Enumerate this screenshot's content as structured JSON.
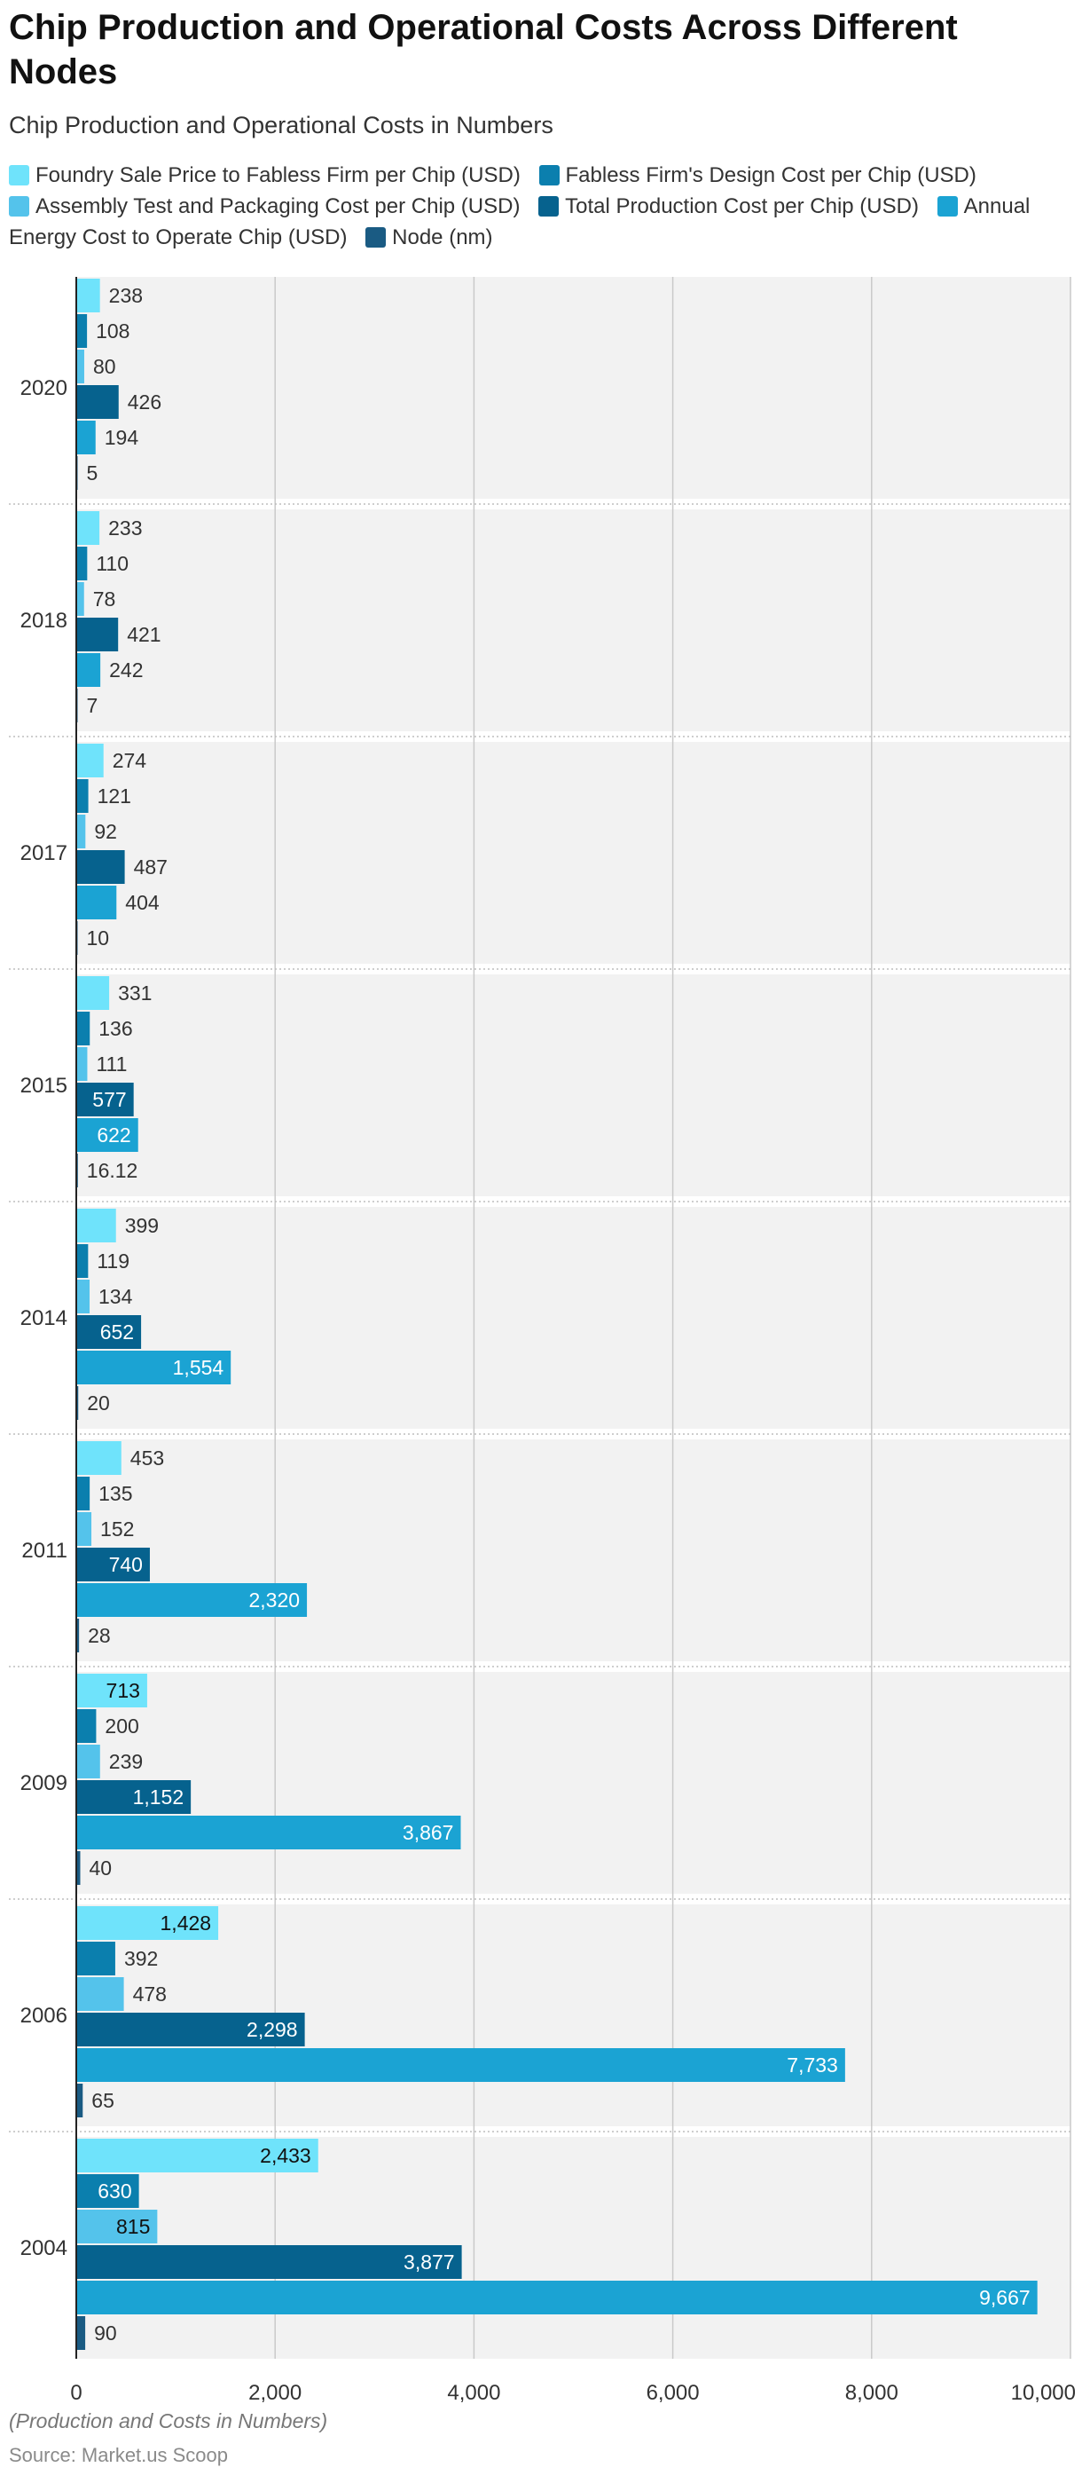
{
  "title": "Chip Production and Operational Costs Across Different Nodes",
  "subtitle": "Chip Production and Operational Costs in Numbers",
  "note": "(Production and Costs in Numbers)",
  "source": "Source: Market.us Scoop",
  "chart_data": {
    "type": "bar",
    "orientation": "horizontal",
    "title": "Chip Production and Operational Costs Across Different Nodes",
    "subtitle": "Chip Production and Operational Costs in Numbers",
    "categories": [
      "2020",
      "2018",
      "2017",
      "2015",
      "2014",
      "2011",
      "2009",
      "2006",
      "2004"
    ],
    "series": [
      {
        "name": "Foundry Sale Price to Fabless Firm per Chip (USD)",
        "color": "#6fe3fb",
        "values": [
          238,
          233,
          274,
          331,
          399,
          453,
          713,
          1428,
          2433
        ]
      },
      {
        "name": "Fabless Firm's Design Cost per Chip (USD)",
        "color": "#0b7fae",
        "values": [
          108,
          110,
          121,
          136,
          119,
          135,
          200,
          392,
          630
        ]
      },
      {
        "name": "Assembly Test and Packaging Cost per Chip (USD)",
        "color": "#54c3eb",
        "values": [
          80,
          78,
          92,
          111,
          134,
          152,
          239,
          478,
          815
        ]
      },
      {
        "name": "Total Production Cost per Chip (USD)",
        "color": "#06628e",
        "values": [
          426,
          421,
          487,
          577,
          652,
          740,
          1152,
          2298,
          3877
        ]
      },
      {
        "name": "Annual Energy Cost to Operate Chip (USD)",
        "color": "#1ba3d3",
        "values": [
          194,
          242,
          404,
          622,
          1554,
          2320,
          3867,
          7733,
          9667
        ]
      },
      {
        "name": "Node (nm)",
        "color": "#1a5b83",
        "values": [
          5,
          7,
          10,
          16.12,
          20,
          28,
          40,
          65,
          90
        ]
      }
    ],
    "value_labels": [
      [
        "238",
        "108",
        "80",
        "426",
        "194",
        "5"
      ],
      [
        "233",
        "110",
        "78",
        "421",
        "242",
        "7"
      ],
      [
        "274",
        "121",
        "92",
        "487",
        "404",
        "10"
      ],
      [
        "331",
        "136",
        "111",
        "577",
        "622",
        "16.12"
      ],
      [
        "399",
        "119",
        "134",
        "652",
        "1,554",
        "20"
      ],
      [
        "453",
        "135",
        "152",
        "740",
        "2,320",
        "28"
      ],
      [
        "713",
        "200",
        "239",
        "1,152",
        "3,867",
        "40"
      ],
      [
        "1,428",
        "392",
        "478",
        "2,298",
        "7,733",
        "65"
      ],
      [
        "2,433",
        "630",
        "815",
        "3,877",
        "9,667",
        "90"
      ]
    ],
    "x_ticks": [
      0,
      2000,
      4000,
      6000,
      8000,
      10000
    ],
    "x_tick_labels": [
      "0",
      "2,000",
      "4,000",
      "6,000",
      "8,000",
      "10,000"
    ],
    "xlim": [
      0,
      10000
    ],
    "xlabel": "",
    "ylabel": "",
    "grid": true,
    "legend_position": "top"
  }
}
